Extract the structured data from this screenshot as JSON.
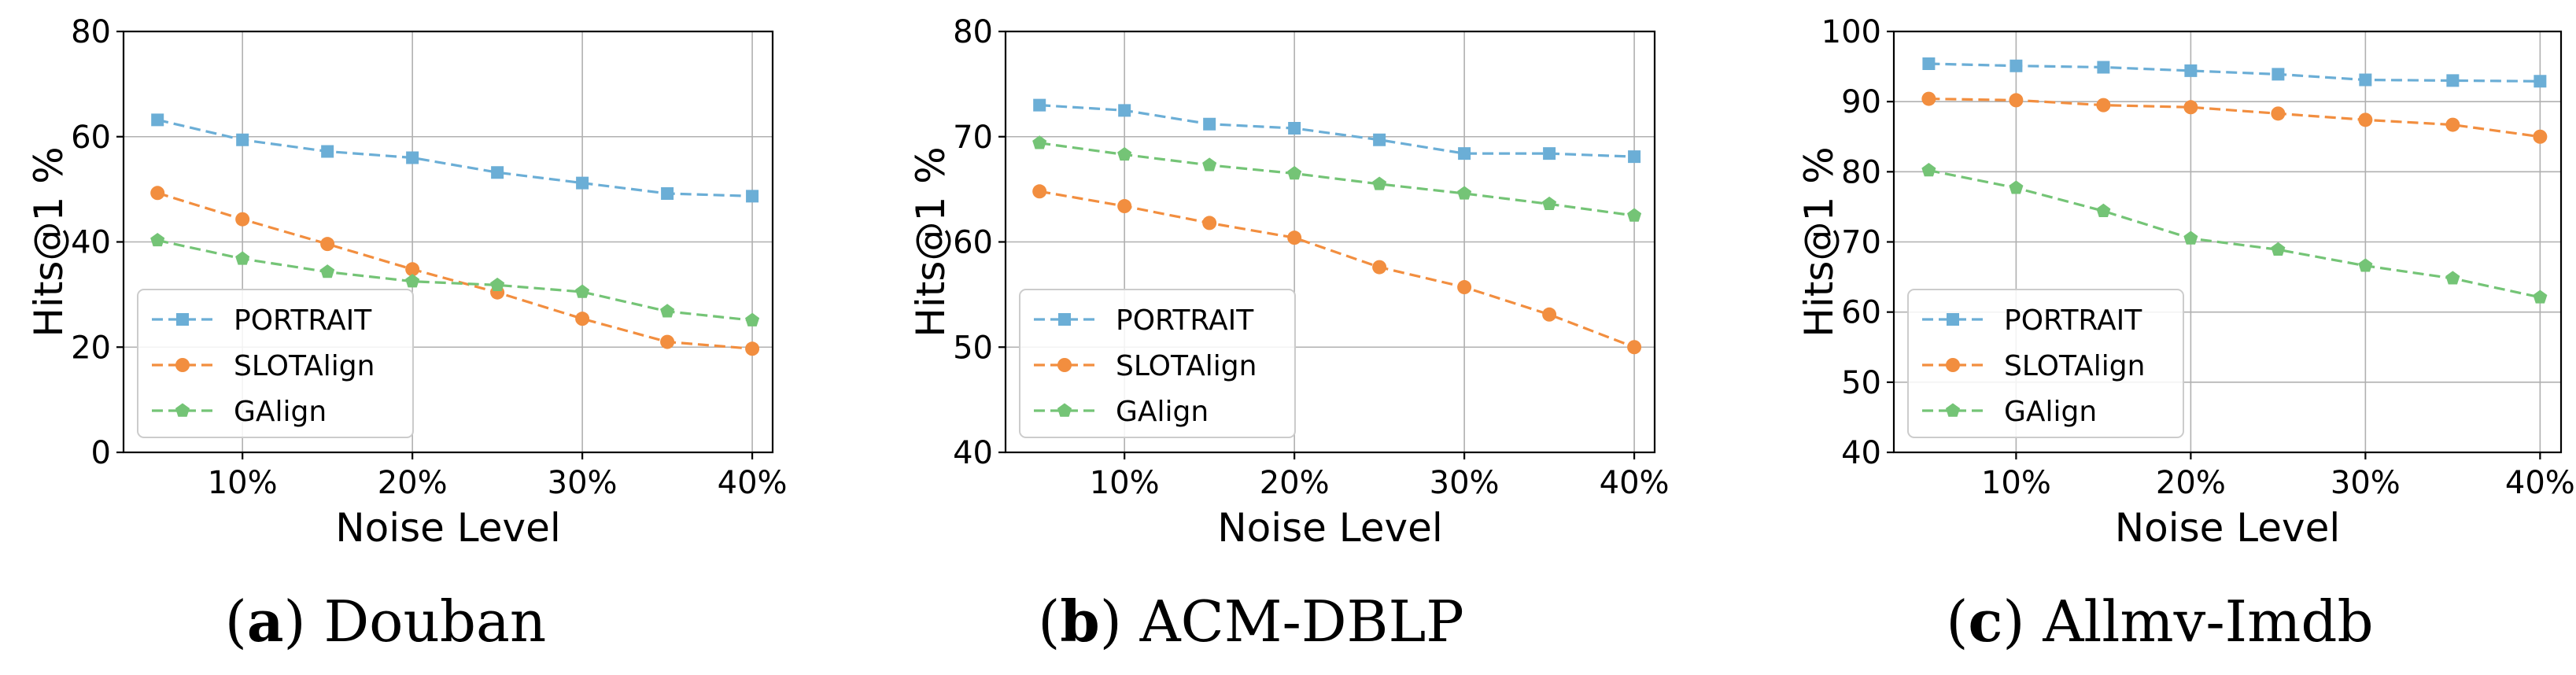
{
  "colors": {
    "PORTRAIT": "#6baed6",
    "SLOTAlign": "#f28e3f",
    "GAlign": "#74c476"
  },
  "chart_data": [
    {
      "type": "line",
      "caption_letter": "a",
      "caption_text": "Douban",
      "xlabel": "Noise Level",
      "ylabel": "Hits@1 %",
      "x": [
        5,
        10,
        15,
        20,
        25,
        30,
        35,
        40
      ],
      "xticks": [
        10,
        20,
        30,
        40
      ],
      "xtick_labels": [
        "10%",
        "20%",
        "30%",
        "40%"
      ],
      "xlim": [
        3,
        41.2
      ],
      "ylim": [
        0,
        80
      ],
      "yticks": [
        0,
        20,
        40,
        60,
        80
      ],
      "ytick_labels": [
        "0",
        "20",
        "40",
        "60",
        "80"
      ],
      "legend_position": "lower-left",
      "series": [
        {
          "name": "PORTRAIT",
          "marker": "square",
          "values": [
            63.2,
            59.4,
            57.2,
            56.0,
            53.2,
            51.2,
            49.2,
            48.7
          ]
        },
        {
          "name": "SLOTAlign",
          "marker": "circle",
          "values": [
            49.3,
            44.3,
            39.6,
            34.8,
            30.4,
            25.4,
            21.0,
            19.7
          ]
        },
        {
          "name": "GAlign",
          "marker": "pentagon",
          "values": [
            40.3,
            36.8,
            34.3,
            32.5,
            31.8,
            30.5,
            26.8,
            25.1
          ]
        }
      ]
    },
    {
      "type": "line",
      "caption_letter": "b",
      "caption_text": "ACM-DBLP",
      "xlabel": "Noise Level",
      "ylabel": "Hits@1 %",
      "x": [
        5,
        10,
        15,
        20,
        25,
        30,
        35,
        40
      ],
      "xticks": [
        10,
        20,
        30,
        40
      ],
      "xtick_labels": [
        "10%",
        "20%",
        "30%",
        "40%"
      ],
      "xlim": [
        3,
        41.2
      ],
      "ylim": [
        40,
        80
      ],
      "yticks": [
        40,
        50,
        60,
        70,
        80
      ],
      "ytick_labels": [
        "40",
        "50",
        "60",
        "70",
        "80"
      ],
      "legend_position": "lower-left",
      "series": [
        {
          "name": "PORTRAIT",
          "marker": "square",
          "values": [
            73.0,
            72.5,
            71.2,
            70.8,
            69.7,
            68.4,
            68.4,
            68.1
          ]
        },
        {
          "name": "SLOTAlign",
          "marker": "circle",
          "values": [
            64.8,
            63.4,
            61.8,
            60.4,
            57.6,
            55.7,
            53.1,
            50.0
          ]
        },
        {
          "name": "GAlign",
          "marker": "pentagon",
          "values": [
            69.4,
            68.3,
            67.3,
            66.5,
            65.5,
            64.6,
            63.6,
            62.5
          ]
        }
      ]
    },
    {
      "type": "line",
      "caption_letter": "c",
      "caption_text": "Allmv-Imdb",
      "xlabel": "Noise Level",
      "ylabel": "Hits@1 %",
      "x": [
        5,
        10,
        15,
        20,
        25,
        30,
        35,
        40
      ],
      "xticks": [
        10,
        20,
        30,
        40
      ],
      "xtick_labels": [
        "10%",
        "20%",
        "30%",
        "40%"
      ],
      "xlim": [
        3,
        41.2
      ],
      "ylim": [
        40,
        100
      ],
      "yticks": [
        40,
        50,
        60,
        70,
        80,
        90,
        100
      ],
      "ytick_labels": [
        "40",
        "50",
        "60",
        "70",
        "80",
        "90",
        "100"
      ],
      "legend_position": "lower-left",
      "series": [
        {
          "name": "PORTRAIT",
          "marker": "square",
          "values": [
            95.4,
            95.1,
            94.9,
            94.4,
            93.9,
            93.1,
            93.0,
            92.9
          ]
        },
        {
          "name": "SLOTAlign",
          "marker": "circle",
          "values": [
            90.4,
            90.2,
            89.5,
            89.2,
            88.3,
            87.4,
            86.7,
            85.0
          ]
        },
        {
          "name": "GAlign",
          "marker": "pentagon",
          "values": [
            80.2,
            77.7,
            74.4,
            70.5,
            68.9,
            66.6,
            64.8,
            62.1
          ]
        }
      ]
    }
  ]
}
